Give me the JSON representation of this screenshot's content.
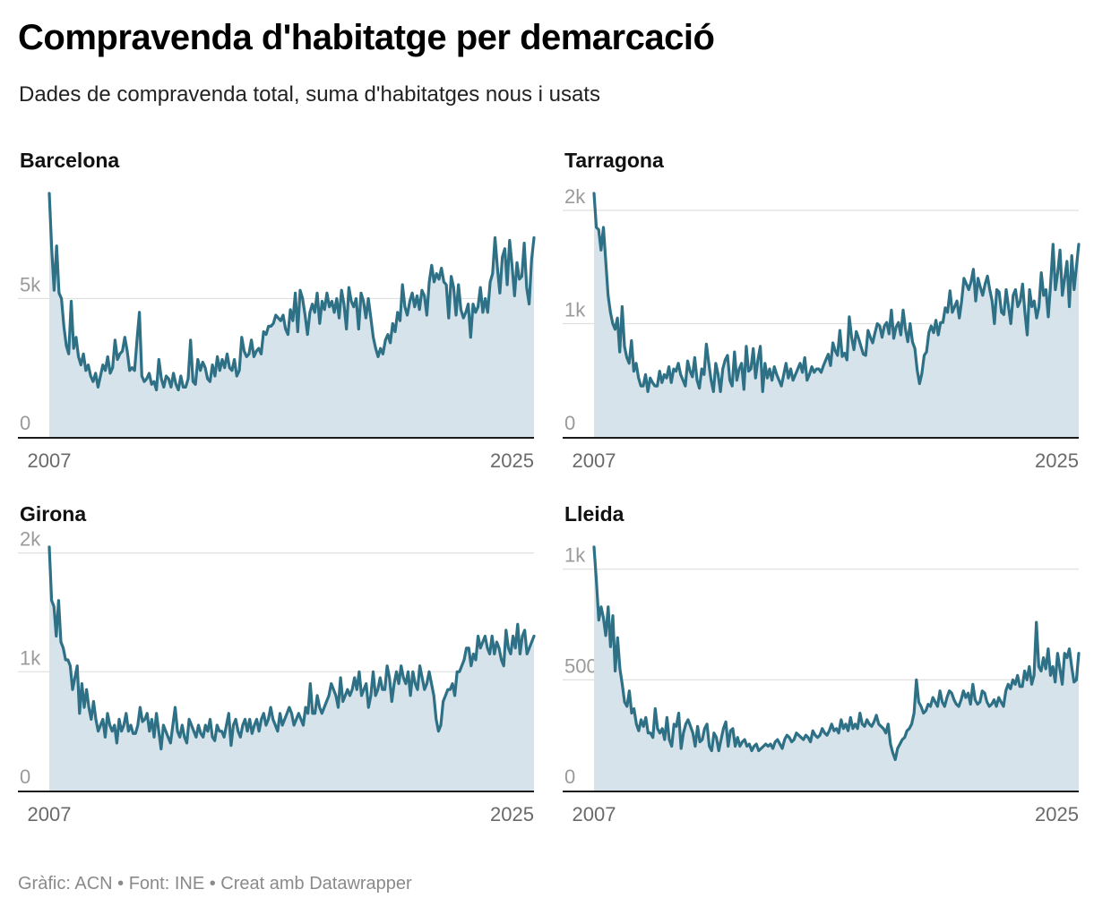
{
  "title": "Compravenda d'habitatge per demarcació",
  "subtitle": "Dades de compravenda total, suma d'habitatges nous i usats",
  "footer": "Gràfic: ACN • Font: INE • Creat amb Datawrapper",
  "colors": {
    "line": "#2e7085",
    "area": "#d6e3ea",
    "grid": "#e0e0e0",
    "axis": "#1a1a1a",
    "tick": "#9a9a9a",
    "xtick": "#6a6a6a"
  },
  "chart_data": [
    {
      "type": "area",
      "title": "Barcelona",
      "x_start": 2007,
      "x_end": 2025,
      "x_ticks": [
        "2007",
        "2025"
      ],
      "ylim": [
        0,
        8800
      ],
      "y_ticks": [
        {
          "value": 0,
          "label": "0"
        },
        {
          "value": 5000,
          "label": "5k"
        }
      ],
      "values": [
        8800,
        6800,
        5300,
        6900,
        5200,
        5000,
        4000,
        3300,
        3000,
        4900,
        3200,
        3600,
        2900,
        2600,
        3000,
        2400,
        2600,
        2200,
        2000,
        2300,
        1800,
        2200,
        2600,
        2400,
        2900,
        2300,
        2500,
        3500,
        2800,
        3000,
        3100,
        3600,
        3100,
        2400,
        2500,
        2400,
        3500,
        4500,
        2200,
        2000,
        2100,
        2300,
        1900,
        2000,
        1700,
        2800,
        2100,
        1800,
        2200,
        2100,
        1800,
        2300,
        1900,
        1700,
        2200,
        1800,
        1800,
        2100,
        3500,
        2000,
        1900,
        2800,
        2400,
        2700,
        2500,
        2100,
        2000,
        2600,
        2200,
        2900,
        2400,
        2800,
        2500,
        3000,
        2500,
        2400,
        2800,
        2200,
        2400,
        3600,
        3100,
        2900,
        3000,
        3500,
        2900,
        3100,
        3200,
        3000,
        3800,
        3700,
        4000,
        4000,
        4100,
        4400,
        4300,
        4200,
        4400,
        3900,
        3700,
        4600,
        4200,
        5200,
        3800,
        5300,
        5000,
        4400,
        3700,
        4500,
        4800,
        4500,
        5200,
        4100,
        4900,
        4600,
        5200,
        4700,
        4900,
        4500,
        5000,
        4300,
        5300,
        4800,
        3900,
        5400,
        4900,
        4700,
        5000,
        3900,
        5200,
        4900,
        4300,
        5000,
        4300,
        3600,
        3200,
        2900,
        3200,
        3000,
        3500,
        3700,
        3400,
        4100,
        3800,
        4500,
        4200,
        5500,
        4700,
        4400,
        4900,
        5200,
        4700,
        5100,
        4600,
        5300,
        5100,
        4400,
        5600,
        6200,
        5600,
        5900,
        5700,
        6100,
        5600,
        5500,
        4300,
        5800,
        5400,
        4400,
        5500,
        4600,
        4300,
        4500,
        4800,
        3600,
        4800,
        4500,
        4700,
        5400,
        4500,
        5000,
        4500,
        5600,
        5900,
        7200,
        6100,
        5200,
        6500,
        6800,
        5500,
        7100,
        6200,
        5100,
        6300,
        5700,
        5800,
        7000,
        5400,
        4800,
        6400,
        7200
      ]
    },
    {
      "type": "area",
      "title": "Tarragona",
      "x_start": 2007,
      "x_end": 2025,
      "x_ticks": [
        "2007",
        "2025"
      ],
      "ylim": [
        0,
        2150
      ],
      "y_ticks": [
        {
          "value": 0,
          "label": "0"
        },
        {
          "value": 1000,
          "label": "1k"
        },
        {
          "value": 2000,
          "label": "2k"
        }
      ],
      "values": [
        2150,
        1850,
        1830,
        1650,
        1850,
        1550,
        1250,
        1100,
        1000,
        950,
        1050,
        750,
        1150,
        800,
        700,
        650,
        850,
        580,
        650,
        520,
        450,
        450,
        550,
        400,
        520,
        480,
        450,
        450,
        580,
        480,
        550,
        520,
        620,
        480,
        600,
        580,
        650,
        550,
        500,
        450,
        670,
        580,
        530,
        700,
        500,
        430,
        600,
        550,
        820,
        650,
        500,
        400,
        650,
        550,
        400,
        600,
        680,
        720,
        500,
        450,
        750,
        500,
        600,
        650,
        420,
        800,
        580,
        600,
        780,
        520,
        680,
        800,
        400,
        650,
        520,
        600,
        500,
        620,
        550,
        500,
        450,
        550,
        650,
        520,
        600,
        500,
        550,
        600,
        650,
        570,
        700,
        500,
        550,
        620,
        570,
        600,
        600,
        570,
        630,
        680,
        730,
        630,
        830,
        760,
        720,
        940,
        710,
        740,
        680,
        1060,
        880,
        770,
        930,
        870,
        800,
        730,
        720,
        940,
        880,
        830,
        920,
        1000,
        980,
        880,
        980,
        1010,
        910,
        1120,
        870,
        970,
        1010,
        900,
        1120,
        950,
        840,
        1000,
        840,
        780,
        590,
        470,
        560,
        720,
        750,
        920,
        980,
        920,
        1030,
        900,
        1010,
        1010,
        1140,
        1100,
        1290,
        1100,
        1150,
        1200,
        1050,
        1200,
        1400,
        1350,
        1300,
        1370,
        1480,
        1200,
        1400,
        1320,
        1250,
        1350,
        1420,
        1300,
        1200,
        1000,
        1300,
        1280,
        1100,
        1080,
        1300,
        1150,
        1000,
        1250,
        1300,
        1150,
        1200,
        1350,
        1100,
        900,
        1300,
        1150,
        1200,
        1050,
        1150,
        1450,
        1250,
        1300,
        1060,
        1350,
        1700,
        1300,
        1450,
        1650,
        1250,
        1400,
        1550,
        1150,
        1600,
        1300,
        1500,
        1700
      ]
    },
    {
      "type": "area",
      "title": "Girona",
      "x_start": 2007,
      "x_end": 2025,
      "x_ticks": [
        "2007",
        "2025"
      ],
      "ylim": [
        0,
        2050
      ],
      "y_ticks": [
        {
          "value": 0,
          "label": "0"
        },
        {
          "value": 1000,
          "label": "1k"
        },
        {
          "value": 2000,
          "label": "2k"
        }
      ],
      "values": [
        2050,
        1600,
        1550,
        1300,
        1600,
        1250,
        1200,
        1100,
        1100,
        1050,
        850,
        950,
        1050,
        650,
        900,
        700,
        850,
        700,
        600,
        750,
        600,
        500,
        550,
        600,
        450,
        650,
        550,
        500,
        550,
        400,
        600,
        500,
        550,
        650,
        500,
        550,
        480,
        480,
        550,
        700,
        580,
        600,
        650,
        500,
        600,
        450,
        650,
        500,
        350,
        550,
        500,
        450,
        400,
        550,
        700,
        500,
        450,
        550,
        450,
        400,
        600,
        550,
        500,
        450,
        550,
        480,
        450,
        550,
        500,
        600,
        450,
        420,
        550,
        500,
        500,
        450,
        550,
        650,
        380,
        550,
        600,
        500,
        450,
        550,
        600,
        500,
        600,
        480,
        550,
        600,
        500,
        600,
        650,
        550,
        600,
        700,
        600,
        550,
        500,
        650,
        550,
        600,
        650,
        700,
        650,
        550,
        600,
        650,
        600,
        550,
        700,
        650,
        900,
        650,
        650,
        800,
        700,
        650,
        700,
        750,
        800,
        900,
        850,
        800,
        700,
        950,
        750,
        800,
        850,
        800,
        850,
        950,
        850,
        1000,
        800,
        850,
        900,
        700,
        800,
        1000,
        800,
        850,
        950,
        850,
        850,
        1050,
        950,
        750,
        900,
        1000,
        900,
        1050,
        950,
        900,
        1000,
        800,
        1000,
        900,
        850,
        1050,
        950,
        850,
        900,
        1000,
        900,
        800,
        600,
        500,
        550,
        750,
        800,
        850,
        850,
        900,
        800,
        1000,
        1000,
        1050,
        1100,
        1200,
        1200,
        1050,
        1150,
        1100,
        1300,
        1200,
        1250,
        1300,
        1200,
        1150,
        1300,
        1150,
        1250,
        1200,
        1100,
        1050,
        1350,
        1200,
        1150,
        1300,
        1200,
        1400,
        1150,
        1300,
        1350,
        1150,
        1200,
        1250,
        1300
      ]
    },
    {
      "type": "area",
      "title": "Lleida",
      "x_start": 2007,
      "x_end": 2025,
      "x_ticks": [
        "2007",
        "2025"
      ],
      "ylim": [
        0,
        1100
      ],
      "y_ticks": [
        {
          "value": 0,
          "label": "0"
        },
        {
          "value": 500,
          "label": "500"
        },
        {
          "value": 1000,
          "label": "1k"
        }
      ],
      "values": [
        1100,
        950,
        770,
        830,
        780,
        700,
        830,
        650,
        790,
        540,
        690,
        550,
        480,
        400,
        380,
        450,
        350,
        370,
        300,
        270,
        320,
        290,
        330,
        260,
        260,
        240,
        370,
        280,
        260,
        280,
        230,
        330,
        230,
        200,
        300,
        290,
        350,
        190,
        260,
        300,
        320,
        290,
        260,
        200,
        290,
        220,
        230,
        280,
        300,
        200,
        180,
        260,
        240,
        180,
        230,
        280,
        310,
        200,
        270,
        280,
        200,
        240,
        200,
        220,
        230,
        200,
        210,
        180,
        200,
        210,
        180,
        190,
        200,
        210,
        200,
        210,
        190,
        220,
        230,
        210,
        190,
        230,
        250,
        240,
        220,
        230,
        260,
        250,
        240,
        230,
        250,
        240,
        220,
        270,
        250,
        240,
        250,
        280,
        260,
        250,
        270,
        300,
        270,
        280,
        260,
        320,
        280,
        300,
        270,
        330,
        280,
        300,
        280,
        350,
        300,
        290,
        320,
        300,
        290,
        310,
        340,
        300,
        290,
        280,
        260,
        300,
        210,
        170,
        140,
        190,
        210,
        230,
        240,
        270,
        280,
        300,
        350,
        500,
        400,
        380,
        350,
        360,
        390,
        380,
        420,
        400,
        380,
        450,
        400,
        380,
        420,
        450,
        440,
        410,
        390,
        380,
        410,
        450,
        420,
        440,
        390,
        480,
        410,
        390,
        400,
        450,
        440,
        400,
        380,
        390,
        410,
        380,
        420,
        400,
        380,
        450,
        480,
        460,
        500,
        480,
        520,
        470,
        470,
        540,
        500,
        560,
        480,
        520,
        760,
        560,
        540,
        600,
        550,
        640,
        520,
        560,
        490,
        620,
        550,
        480,
        620,
        600,
        640,
        560,
        490,
        500,
        620
      ]
    }
  ]
}
